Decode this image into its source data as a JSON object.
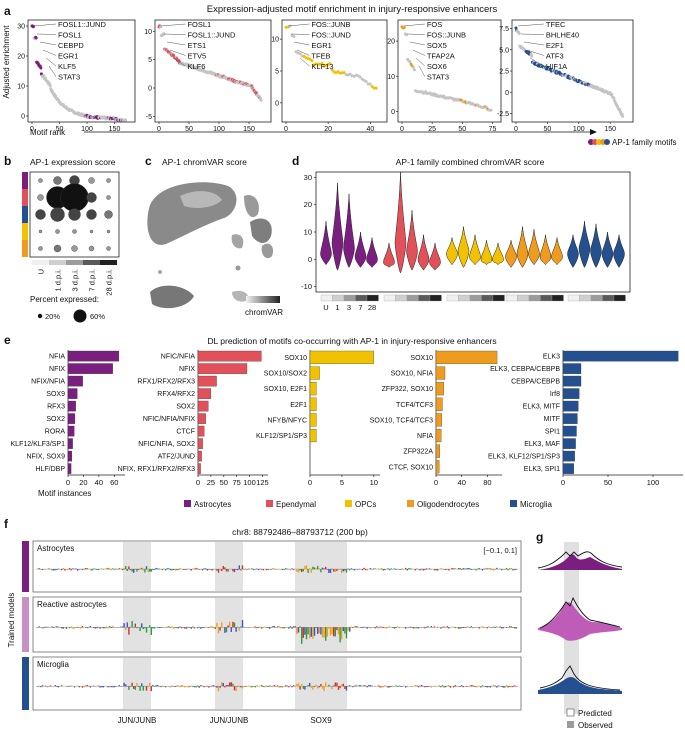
{
  "colors": {
    "astro": "#7a1e7f",
    "epen": "#e2505a",
    "opc": "#f2c200",
    "oligo": "#ef9b1e",
    "micro": "#24508f",
    "grey": "#bdbdbd"
  },
  "panel_a": {
    "letter": "a",
    "title": "Expression-adjusted motif enrichment in injury-responsive enhancers",
    "ylabel": "Adjusted enrichment",
    "xlabel": "Motif rank",
    "legend": "AP-1 family motifs",
    "subpanels": [
      {
        "color": "astro",
        "yticks": [
          "0",
          "10",
          "20",
          "30"
        ],
        "xticks": [
          "0",
          "50",
          "100",
          "150"
        ],
        "labels": [
          "FOSL1::JUND",
          "FOSL1",
          "CEBPD",
          "EGR1",
          "KLF5",
          "STAT3"
        ]
      },
      {
        "color": "epen",
        "yticks": [
          "-5",
          "0",
          "5",
          "10"
        ],
        "xticks": [
          "0",
          "50",
          "100",
          "150"
        ],
        "labels": [
          "FOSL1",
          "FOSL1::JUND",
          "ETS1",
          "ETV5",
          "KLF6"
        ]
      },
      {
        "color": "opc",
        "yticks": [
          "0",
          "5",
          "10"
        ],
        "xticks": [
          "0",
          "20",
          "40"
        ],
        "labels": [
          "FOS::JUNB",
          "FOS::JUND",
          "EGR1",
          "TFEB",
          "KLF13"
        ]
      },
      {
        "color": "oligo",
        "yticks": [
          "0",
          "10",
          "20"
        ],
        "xticks": [
          "0",
          "25",
          "50",
          "75"
        ],
        "labels": [
          "FOS",
          "FOS::JUNB",
          "SOX5",
          "TFAP2A",
          "SOX6",
          "STAT3"
        ]
      },
      {
        "color": "micro",
        "yticks": [
          "-2.5",
          "0",
          "2.5",
          "5.0",
          "7.5"
        ],
        "xticks": [
          "0",
          "50",
          "100",
          "150"
        ],
        "labels": [
          "TFEC",
          "BHLHE40",
          "E2F1",
          "ATF3",
          "HIF1A"
        ]
      }
    ]
  },
  "panel_b": {
    "letter": "b",
    "title": "AP-1 expression score",
    "conditions": [
      "U",
      "1 d.p.i.",
      "3 d.p.i.",
      "7 d.p.i.",
      "28 d.p.i."
    ],
    "legend_title": "Percent expressed:",
    "legend_small": "20%",
    "legend_large": "60%"
  },
  "panel_c": {
    "letter": "c",
    "title": "AP-1 chromVAR score",
    "colorbar": "chromVAR"
  },
  "panel_d": {
    "letter": "d",
    "title": "AP-1 family combined chromVAR score",
    "yticks": [
      "-10",
      "0",
      "10",
      "20",
      "30"
    ],
    "conditions": [
      "U",
      "1",
      "3",
      "7",
      "28"
    ]
  },
  "panel_e": {
    "letter": "e",
    "title": "DL prediction of motifs co-occurring with AP-1 in injury-responsive enhancers",
    "xlabel": "Motif instances",
    "legend": [
      "Astrocytes",
      "Ependymal",
      "OPCs",
      "Oligodendrocytes",
      "Microglia"
    ],
    "subpanels": [
      {
        "color": "astro",
        "max": 70,
        "xticks": [
          "0",
          "20",
          "40",
          "60"
        ],
        "bars": [
          {
            "label": "NFIA",
            "value": 66
          },
          {
            "label": "NFIX",
            "value": 58
          },
          {
            "label": "NFIX/NFIA",
            "value": 19
          },
          {
            "label": "SOX9",
            "value": 12
          },
          {
            "label": "RFX3",
            "value": 10
          },
          {
            "label": "SOX2",
            "value": 9
          },
          {
            "label": "RORA",
            "value": 8
          },
          {
            "label": "KLF12/KLF3/SP1",
            "value": 6
          },
          {
            "label": "NFIX, SOX9",
            "value": 5
          },
          {
            "label": "HLF/DBP",
            "value": 4
          }
        ]
      },
      {
        "color": "epen",
        "max": 130,
        "xticks": [
          "0",
          "25",
          "50",
          "75",
          "100",
          "125"
        ],
        "bars": [
          {
            "label": "NFIC/NFIA",
            "value": 123
          },
          {
            "label": "NFIX",
            "value": 95
          },
          {
            "label": "RFX1/RFX2/RFX3",
            "value": 36
          },
          {
            "label": "RFX4/RFX2",
            "value": 25
          },
          {
            "label": "SOX2",
            "value": 20
          },
          {
            "label": "NFIC/NFIA/NFIX",
            "value": 15
          },
          {
            "label": "CTCF",
            "value": 12
          },
          {
            "label": "NFIC/NFIA, SOX2",
            "value": 9
          },
          {
            "label": "ATF2/JUND",
            "value": 7
          },
          {
            "label": "NFIX, RFX1/RFX2/RFX3",
            "value": 5
          }
        ]
      },
      {
        "color": "opc",
        "max": 10.5,
        "xticks": [
          "0",
          "5",
          "10"
        ],
        "bars": [
          {
            "label": "SOX10",
            "value": 10
          },
          {
            "label": "SOX10/SOX2",
            "value": 1.5
          },
          {
            "label": "SOX10, E2F1",
            "value": 1
          },
          {
            "label": "E2F1",
            "value": 1
          },
          {
            "label": "NFYB/NFYC",
            "value": 1
          },
          {
            "label": "KLF12/SP1/SP3",
            "value": 1
          }
        ]
      },
      {
        "color": "oligo",
        "max": 98,
        "xticks": [
          "0",
          "40",
          "80"
        ],
        "bars": [
          {
            "label": "SOX10",
            "value": 95
          },
          {
            "label": "SOX10, NFIA",
            "value": 14
          },
          {
            "label": "ZFP322, SOX10",
            "value": 12
          },
          {
            "label": "TCF4/TCF3",
            "value": 10
          },
          {
            "label": "SOX10, TCF4/TCF3",
            "value": 9
          },
          {
            "label": "NFIA",
            "value": 8
          },
          {
            "label": "ZFP322A",
            "value": 6
          },
          {
            "label": "CTCF, SOX10",
            "value": 5
          }
        ]
      },
      {
        "color": "micro",
        "max": 130,
        "xticks": [
          "0",
          "50",
          "100"
        ],
        "bars": [
          {
            "label": "ELK3",
            "value": 128
          },
          {
            "label": "ELK3, CEBPA/CEBPB",
            "value": 20
          },
          {
            "label": "CEBPA/CEBPB",
            "value": 20
          },
          {
            "label": "Irf8",
            "value": 18
          },
          {
            "label": "ELK3, MITF",
            "value": 17
          },
          {
            "label": "MITF",
            "value": 16
          },
          {
            "label": "SPI1",
            "value": 15
          },
          {
            "label": "ELK3, MAF",
            "value": 14
          },
          {
            "label": "ELK3, KLF12/SP1/SP3",
            "value": 13
          },
          {
            "label": "ELK3, SPI1",
            "value": 12
          }
        ]
      }
    ]
  },
  "panel_f": {
    "letter": "f",
    "title": "chr8: 88792486–88793712 (200 bp)",
    "ylabel": "Trained models",
    "range": "[−0.1, 0.1]",
    "tracks": [
      "Astrocytes",
      "Reactive astrocytes",
      "Microglia"
    ],
    "motif_labels": [
      "JUN/JUNB",
      "JUN/JUNB",
      "SOX9"
    ]
  },
  "panel_g": {
    "letter": "g",
    "legend_predicted": "Predicted",
    "legend_observed": "Observed"
  }
}
